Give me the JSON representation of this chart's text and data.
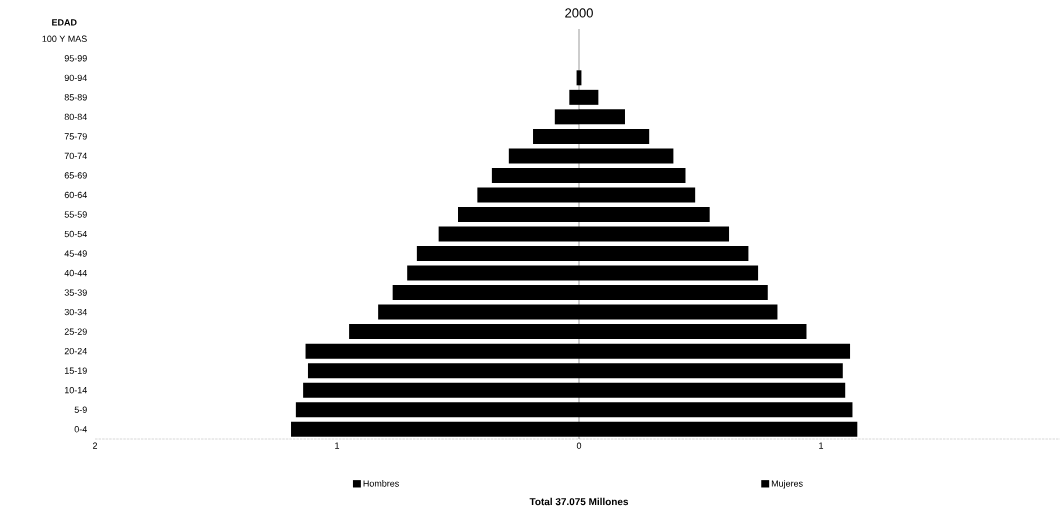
{
  "chart_data": {
    "type": "bar",
    "orientation": "horizontal",
    "title": "2000",
    "ylabel": "EDAD",
    "categories": [
      "100 Y MAS",
      "95-99",
      "90-94",
      "85-89",
      "80-84",
      "75-79",
      "70-74",
      "65-69",
      "60-64",
      "55-59",
      "50-54",
      "45-49",
      "40-44",
      "35-39",
      "30-34",
      "25-29",
      "20-24",
      "15-19",
      "10-14",
      "5-9",
      "0-4"
    ],
    "series": [
      {
        "name": "Hombres",
        "color": "#000000",
        "values": [
          0,
          0,
          -0.01,
          -0.04,
          -0.1,
          -0.19,
          -0.29,
          -0.36,
          -0.42,
          -0.5,
          -0.58,
          -0.67,
          -0.71,
          -0.77,
          -0.83,
          -0.95,
          -1.13,
          -1.12,
          -1.14,
          -1.17,
          -1.19
        ]
      },
      {
        "name": "Mujeres",
        "color": "#000000",
        "values": [
          0,
          0,
          0.01,
          0.08,
          0.19,
          0.29,
          0.39,
          0.44,
          0.48,
          0.54,
          0.62,
          0.7,
          0.74,
          0.78,
          0.82,
          0.94,
          1.12,
          1.09,
          1.1,
          1.13,
          1.15
        ]
      }
    ],
    "xlim": [
      -2,
      2
    ],
    "xticks": [
      {
        "value": -2,
        "label": "2"
      },
      {
        "value": -1,
        "label": "1"
      },
      0,
      1
    ],
    "legend": "bottom",
    "stacked": true,
    "annotations": [
      "Total 37.075 Millones"
    ]
  }
}
